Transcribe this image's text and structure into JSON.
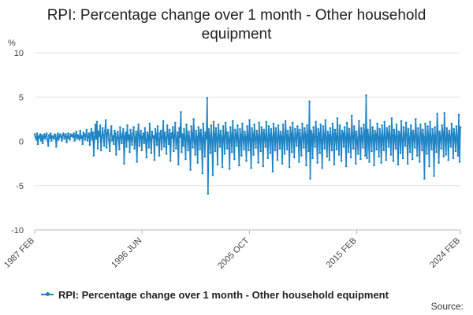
{
  "title": "RPI: Percentage change over 1 month - Other household equipment",
  "source_label": "Source:",
  "colors": {
    "series": "#1f84c4",
    "grid": "#e3e3e3",
    "axis": "#bbbbbb"
  },
  "chart_data": {
    "type": "line",
    "title": "RPI: Percentage change over 1 month - Other household equipment",
    "ylabel": "%",
    "xlabel": "",
    "ylim": [
      -10,
      10
    ],
    "y_ticks": [
      10,
      5,
      0,
      -5,
      -10
    ],
    "x_ticks": [
      "1987 FEB",
      "1996 JUN",
      "2005 OCT",
      "2015 FEB",
      "2024 FEB"
    ],
    "grid": true,
    "legend_position": "bottom",
    "series": [
      {
        "name": "RPI: Percentage change over 1 month - Other household equipment",
        "start": "1987 FEB",
        "end": "2024 FEB",
        "frequency": "monthly",
        "values": [
          0.8,
          0.5,
          0.2,
          0.9,
          -0.3,
          0.6,
          0.4,
          0.8,
          0.1,
          0.7,
          -0.2,
          0.5,
          0.8,
          0.3,
          0.6,
          0.9,
          0.2,
          -0.5,
          0.7,
          0.4,
          0.9,
          0.1,
          0.6,
          0.5,
          0.3,
          0.8,
          0.7,
          -0.6,
          0.4,
          0.9,
          0.2,
          0.6,
          0.8,
          0.5,
          0.1,
          0.7,
          0.9,
          0.3,
          0.6,
          0.8,
          -0.1,
          0.5,
          0.9,
          0.4,
          0.2,
          0.8,
          0.6,
          0.7,
          0.5,
          0.9,
          0.1,
          0.6,
          1.1,
          0.3,
          0.7,
          0.5,
          0.2,
          1.2,
          0.4,
          0.6,
          -0.3,
          1.0,
          0.8,
          0.2,
          0.6,
          1.3,
          0.1,
          0.5,
          0.9,
          -0.4,
          0.7,
          1.4,
          0.2,
          1.0,
          -1.6,
          0.5,
          1.9,
          0.3,
          2.2,
          -0.8,
          1.1,
          0.6,
          1.8,
          -1.0,
          0.4,
          1.5,
          0.7,
          -0.5,
          1.2,
          2.4,
          -0.7,
          0.9,
          1.3,
          0.2,
          -1.1,
          0.8,
          1.7,
          0.1,
          0.6,
          -0.3,
          1.2,
          0.9,
          -1.5,
          0.4,
          1.1,
          0.3,
          -0.9,
          1.6,
          0.5,
          -0.2,
          0.8,
          1.4,
          -2.5,
          0.6,
          1.0,
          -0.6,
          1.8,
          0.2,
          0.7,
          -1.2,
          1.3,
          0.4,
          -0.4,
          0.9,
          1.6,
          -0.8,
          0.3,
          1.1,
          -2.3,
          0.8,
          1.9,
          -0.5,
          0.6,
          1.2,
          -1.0,
          0.5,
          0.9,
          -0.2,
          1.5,
          0.1,
          -1.8,
          1.0,
          0.7,
          -0.7,
          2.0,
          0.3,
          -1.3,
          1.1,
          0.4,
          0.6,
          -2.1,
          1.4,
          0.8,
          -0.4,
          1.7,
          0.2,
          -1.6,
          0.9,
          1.2,
          -0.9,
          0.5,
          2.3,
          -0.6,
          1.0,
          0.3,
          -1.4,
          1.8,
          0.7,
          -0.3,
          1.3,
          -2.2,
          0.9,
          0.4,
          1.6,
          -1.1,
          0.6,
          2.1,
          -0.8,
          0.2,
          1.0,
          -2.6,
          1.5,
          0.5,
          3.3,
          -1.2,
          0.8,
          -0.5,
          1.4,
          0.3,
          -2.0,
          1.9,
          0.6,
          -1.0,
          1.1,
          0.2,
          -3.2,
          1.7,
          0.8,
          -0.7,
          2.5,
          0.1,
          -1.5,
          1.2,
          0.5,
          -2.4,
          1.6,
          0.9,
          -0.9,
          1.3,
          0.4,
          -3.6,
          2.0,
          0.7,
          -1.7,
          1.0,
          0.3,
          4.9,
          -5.9,
          1.4,
          0.6,
          -1.3,
          1.8,
          0.2,
          -3.8,
          2.2,
          0.8,
          -1.1,
          1.5,
          0.4,
          -2.6,
          1.9,
          0.7,
          -0.6,
          1.2,
          0.3,
          -2.9,
          1.7,
          0.5,
          -1.4,
          2.1,
          0.9,
          -0.8,
          1.0,
          0.2,
          -3.1,
          1.6,
          0.6,
          -1.2,
          2.3,
          0.4,
          -2.0,
          1.3,
          0.8,
          -0.5,
          1.8,
          0.1,
          -2.7,
          1.4,
          0.7,
          -1.6,
          2.0,
          0.3,
          -0.9,
          1.1,
          0.5,
          -2.2,
          1.7,
          0.6,
          -1.0,
          2.4,
          0.2,
          -3.0,
          1.5,
          0.8,
          -1.5,
          1.9,
          0.4,
          -0.7,
          1.2,
          0.6,
          -2.4,
          2.1,
          0.3,
          -1.1,
          1.6,
          0.9,
          -2.8,
          1.3,
          0.5,
          -0.6,
          2.2,
          0.2,
          -1.9,
          1.7,
          0.7,
          -1.3,
          1.4,
          0.4,
          -3.4,
          2.0,
          0.8,
          -1.0,
          1.5,
          0.3,
          -2.1,
          1.8,
          0.6,
          -0.8,
          1.1,
          0.5,
          -2.5,
          1.9,
          0.2,
          -1.4,
          2.3,
          0.7,
          -0.9,
          1.2,
          0.4,
          -2.9,
          1.6,
          0.8,
          -1.2,
          2.1,
          0.3,
          -1.8,
          1.4,
          0.6,
          -0.5,
          1.7,
          0.9,
          -2.3,
          1.3,
          0.2,
          -1.6,
          2.0,
          0.5,
          -0.7,
          1.5,
          0.7,
          -2.7,
          1.8,
          0.4,
          -1.1,
          4.5,
          -4.2,
          1.2,
          0.8,
          -1.9,
          1.6,
          0.3,
          -0.6,
          2.2,
          0.5,
          -2.4,
          1.4,
          0.9,
          -1.3,
          1.9,
          0.2,
          -3.0,
          1.7,
          0.6,
          -0.8,
          2.4,
          0.4,
          -1.7,
          1.1,
          0.7,
          -2.1,
          1.5,
          0.3,
          -1.0,
          2.0,
          0.8,
          -2.6,
          1.3,
          0.5,
          -0.9,
          2.6,
          0.2,
          -1.5,
          1.8,
          0.6,
          -2.2,
          1.2,
          0.9,
          -0.6,
          1.6,
          0.4,
          -2.8,
          2.1,
          0.7,
          -1.2,
          1.4,
          0.3,
          -1.8,
          2.9,
          0.5,
          -0.8,
          1.7,
          0.8,
          -2.5,
          1.1,
          0.2,
          -1.4,
          2.3,
          0.6,
          -2.0,
          1.5,
          0.4,
          -0.7,
          1.9,
          0.9,
          -1.6,
          5.2,
          -1.9,
          1.3,
          0.5,
          -2.3,
          2.4,
          0.3,
          -1.1,
          1.6,
          0.7,
          -2.7,
          1.2,
          0.8,
          -0.9,
          2.0,
          0.4,
          -1.7,
          1.4,
          0.6,
          -2.4,
          1.8,
          0.2,
          -1.0,
          2.2,
          0.5,
          -2.1,
          1.5,
          0.9,
          -0.6,
          1.7,
          0.3,
          -1.5,
          2.6,
          0.7,
          -2.2,
          1.3,
          0.4,
          -0.8,
          1.9,
          0.6,
          -2.6,
          1.1,
          0.8,
          -1.3,
          2.3,
          0.2,
          -1.9,
          1.6,
          0.5,
          -0.5,
          2.1,
          0.7,
          -2.5,
          1.4,
          0.3,
          -1.2,
          1.8,
          0.9,
          -2.0,
          1.2,
          0.4,
          -0.7,
          2.5,
          0.6,
          -1.6,
          1.5,
          0.2,
          -2.3,
          1.9,
          0.8,
          -1.0,
          1.3,
          0.5,
          -4.2,
          2.0,
          0.3,
          -1.4,
          1.7,
          0.7,
          -2.8,
          2.2,
          0.4,
          -0.9,
          1.4,
          0.6,
          -3.9,
          1.6,
          0.2,
          -1.2,
          3.1,
          0.8,
          -2.4,
          1.1,
          0.5,
          -0.8,
          1.8,
          0.9,
          -1.7,
          3.2,
          0.3,
          -1.5,
          1.5,
          0.7,
          -2.1,
          1.2,
          0.4,
          -0.6,
          2.0,
          0.8,
          -1.9,
          1.4,
          0.5,
          -1.1,
          1.7,
          0.2,
          -1.6,
          3.0,
          -2.3,
          1.6
        ]
      }
    ]
  }
}
